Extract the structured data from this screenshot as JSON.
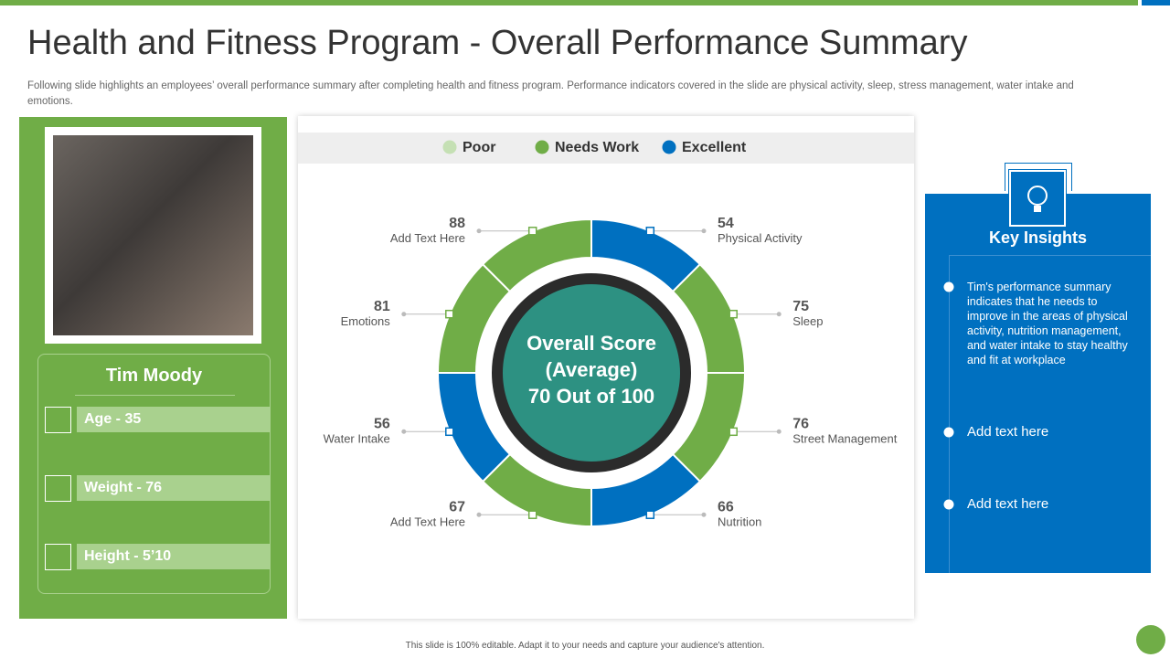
{
  "title": "Health and Fitness Program - Overall Performance Summary",
  "subtitle": "Following slide highlights an employees’ overall performance summary after completing health and fitness program. Performance indicators covered in the slide are physical activity,  sleep, stress management, water intake and emotions.",
  "profile": {
    "name": "Tim Moody",
    "details": [
      "Age - 35",
      "Weight - 76",
      "Height - 5’10"
    ]
  },
  "legend": [
    {
      "name": "Poor",
      "color": "#c5e0b4"
    },
    {
      "name": "Needs Work",
      "color": "#70ad47"
    },
    {
      "name": "Excellent",
      "color": "#0070c0"
    }
  ],
  "center": [
    "Overall Score",
    "(Average)",
    "70 Out of 100"
  ],
  "segments": [
    {
      "value": "54",
      "label": "Physical Activity",
      "color": "#0070c0"
    },
    {
      "value": "75",
      "label": "Sleep",
      "color": "#70ad47"
    },
    {
      "value": "76",
      "label": "Street Management",
      "color": "#70ad47"
    },
    {
      "value": "66",
      "label": "Nutrition",
      "color": "#0070c0"
    },
    {
      "value": "67",
      "label": "Add Text Here",
      "color": "#70ad47"
    },
    {
      "value": "56",
      "label": "Water Intake",
      "color": "#0070c0"
    },
    {
      "value": "81",
      "label": "Emotions",
      "color": "#70ad47"
    },
    {
      "value": "88",
      "label": "Add Text Here",
      "color": "#70ad47"
    }
  ],
  "insights": {
    "title": "Key Insights",
    "items": [
      "Tim's performance summary indicates that he needs to improve  in the areas of physical activity, nutrition management, and water intake to stay healthy and fit at workplace",
      "Add text here",
      "Add text here"
    ]
  },
  "footer": "This slide is 100% editable.  Adapt it to your needs and capture your audience's attention."
}
